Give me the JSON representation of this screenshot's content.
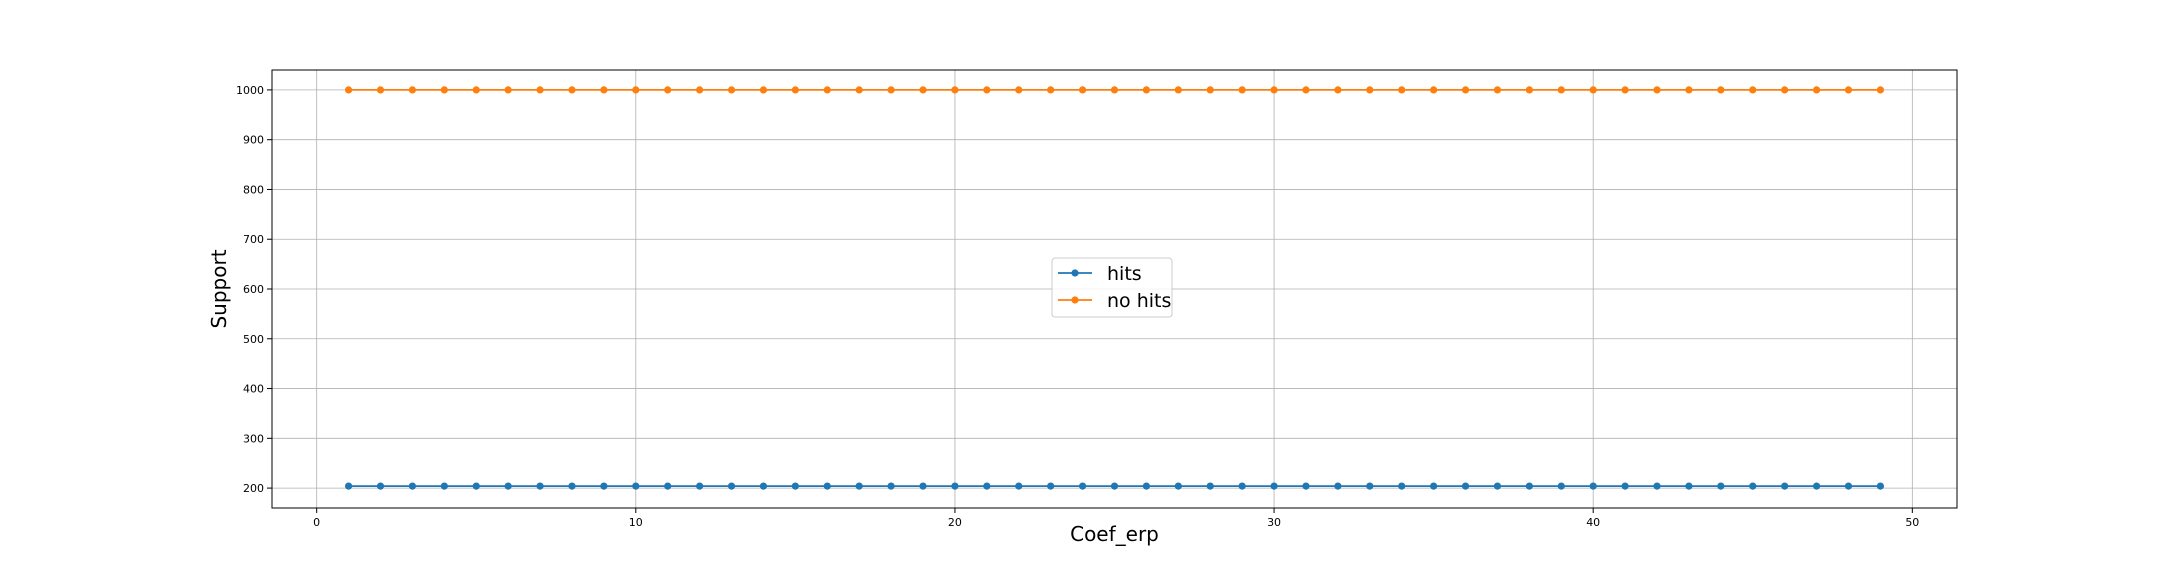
{
  "chart_data": {
    "type": "line",
    "title": "",
    "xlabel": "Coef_erp",
    "ylabel": "Support",
    "xlim": [
      -1.4,
      51.4
    ],
    "ylim": [
      160,
      1040
    ],
    "xticks": [
      0,
      10,
      20,
      30,
      40,
      50
    ],
    "yticks": [
      200,
      300,
      400,
      500,
      600,
      700,
      800,
      900,
      1000
    ],
    "grid": true,
    "legend_position": "center",
    "x": [
      1,
      2,
      3,
      4,
      5,
      6,
      7,
      8,
      9,
      10,
      11,
      12,
      13,
      14,
      15,
      16,
      17,
      18,
      19,
      20,
      21,
      22,
      23,
      24,
      25,
      26,
      27,
      28,
      29,
      30,
      31,
      32,
      33,
      34,
      35,
      36,
      37,
      38,
      39,
      40,
      41,
      42,
      43,
      44,
      45,
      46,
      47,
      48,
      49
    ],
    "series": [
      {
        "name": "hits",
        "color": "#1f77b4",
        "values": [
          204,
          204,
          204,
          204,
          204,
          204,
          204,
          204,
          204,
          204,
          204,
          204,
          204,
          204,
          204,
          204,
          204,
          204,
          204,
          204,
          204,
          204,
          204,
          204,
          204,
          204,
          204,
          204,
          204,
          204,
          204,
          204,
          204,
          204,
          204,
          204,
          204,
          204,
          204,
          204,
          204,
          204,
          204,
          204,
          204,
          204,
          204,
          204,
          204
        ]
      },
      {
        "name": "no hits",
        "color": "#ff7f0e",
        "values": [
          1000,
          1000,
          1000,
          1000,
          1000,
          1000,
          1000,
          1000,
          1000,
          1000,
          1000,
          1000,
          1000,
          1000,
          1000,
          1000,
          1000,
          1000,
          1000,
          1000,
          1000,
          1000,
          1000,
          1000,
          1000,
          1000,
          1000,
          1000,
          1000,
          1000,
          1000,
          1000,
          1000,
          1000,
          1000,
          1000,
          1000,
          1000,
          1000,
          1000,
          1000,
          1000,
          1000,
          1000,
          1000,
          1000,
          1000,
          1000,
          1000
        ]
      }
    ]
  }
}
